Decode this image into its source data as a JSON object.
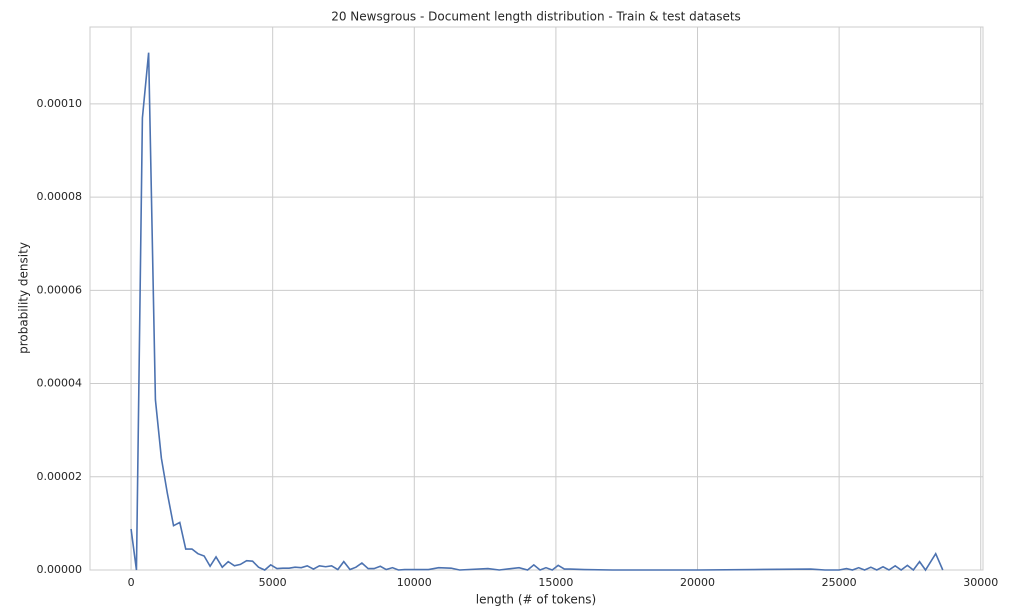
{
  "chart_data": {
    "type": "line",
    "title": "20 Newsgrous - Document length distribution - Train & test datasets",
    "x_label": "length (# of tokens)",
    "y_label": "probability density",
    "color": "#4c72b0",
    "grid": true,
    "xlim": [
      -1450,
      30080
    ],
    "ylim": [
      0,
      0.0001165
    ],
    "xticks": [
      0,
      5000,
      10000,
      15000,
      20000,
      25000,
      30000
    ],
    "yticks": [
      {
        "value": 0,
        "label": "0.00000"
      },
      {
        "value": 2e-05,
        "label": "0.00002"
      },
      {
        "value": 4e-05,
        "label": "0.00004"
      },
      {
        "value": 6e-05,
        "label": "0.00006"
      },
      {
        "value": 8e-05,
        "label": "0.00008"
      },
      {
        "value": 0.0001,
        "label": "0.00010"
      }
    ],
    "x": [
      0,
      190,
      400,
      620,
      860,
      1070,
      1280,
      1500,
      1720,
      1930,
      2150,
      2360,
      2580,
      2790,
      3000,
      3220,
      3430,
      3650,
      3860,
      4080,
      4290,
      4500,
      4720,
      4930,
      5150,
      5360,
      5580,
      5790,
      6010,
      6220,
      6440,
      6650,
      6870,
      7080,
      7300,
      7510,
      7730,
      7940,
      8150,
      8370,
      8580,
      8800,
      9010,
      9230,
      9440,
      9660,
      10500,
      10860,
      11300,
      11600,
      12600,
      13000,
      13700,
      14000,
      14220,
      14440,
      14650,
      14870,
      15080,
      15300,
      15510,
      16000,
      17000,
      20000,
      22000,
      24000,
      24500,
      25000,
      25260,
      25470,
      25690,
      25900,
      26120,
      26330,
      26550,
      26760,
      26980,
      27190,
      27410,
      27620,
      27840,
      28050,
      28410,
      28660
    ],
    "values": [
      8.8e-06,
      0,
      9.7e-05,
      0.000111,
      3.65e-05,
      2.4e-05,
      1.65e-05,
      9.5e-06,
      1.02e-05,
      4.5e-06,
      4.5e-06,
      3.5e-06,
      3e-06,
      8e-07,
      2.8e-06,
      6e-07,
      1.8e-06,
      9e-07,
      1.2e-06,
      2e-06,
      1.9e-06,
      6e-07,
      0,
      1.1e-06,
      3e-07,
      4e-07,
      4e-07,
      6e-07,
      5e-07,
      9e-07,
      2e-07,
      9e-07,
      7e-07,
      9e-07,
      1e-07,
      1.8e-06,
      1e-07,
      6e-07,
      1.5e-06,
      3e-07,
      3e-07,
      8e-07,
      1e-07,
      5e-07,
      0,
      1e-07,
      1e-07,
      5e-07,
      4e-07,
      0,
      3e-07,
      0,
      5e-07,
      0,
      1.1e-06,
      0,
      5e-07,
      0,
      1e-06,
      2e-07,
      2e-07,
      1e-07,
      0,
      0,
      1e-07,
      2e-07,
      0,
      0,
      3e-07,
      0,
      5e-07,
      0,
      6e-07,
      0,
      7e-07,
      0,
      9e-07,
      0,
      1e-06,
      0,
      1.8e-06,
      0,
      3.5e-06,
      0
    ]
  }
}
